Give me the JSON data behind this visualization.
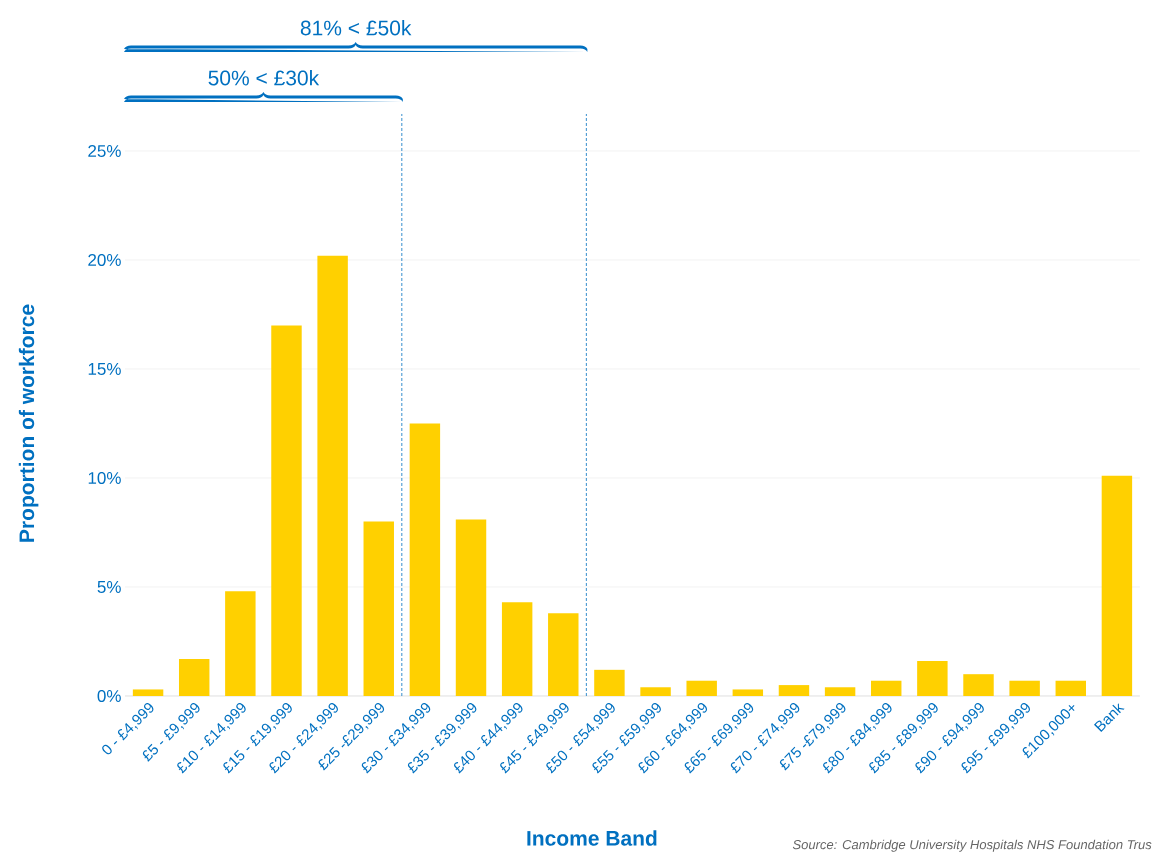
{
  "chart_data": {
    "type": "bar",
    "xlabel": "Income Band",
    "ylabel": "Proportion of workforce",
    "categories": [
      "0 - £4,999",
      "£5 - £9,999",
      "£10 - £14,999",
      "£15 - £19,999",
      "£20 - £24,999",
      "£25 -£29,999",
      "£30 - £34,999",
      "£35 - £39,999",
      "£40 - £44,999",
      "£45 - £49,999",
      "£50 - £54,999",
      "£55 - £59,999",
      "£60 - £64,999",
      "£65 - £69,999",
      "£70 - £74,999",
      "£75 -£79,999",
      "£80 - £84,999",
      "£85 - £89,999",
      "£90 - £94,999",
      "£95 - £99,999",
      "£100,000+",
      "Bank"
    ],
    "values": [
      0.3,
      1.7,
      4.8,
      17.0,
      20.2,
      8.0,
      12.5,
      8.1,
      4.3,
      3.8,
      1.2,
      0.4,
      0.7,
      0.3,
      0.5,
      0.4,
      0.7,
      1.6,
      1.0,
      0.7,
      0.7,
      10.1
    ],
    "color": "#ffd000",
    "ylim": [
      0,
      25
    ],
    "yticks": [
      {
        "value": 0,
        "label": "0%"
      },
      {
        "value": 5,
        "label": "5%"
      },
      {
        "value": 10,
        "label": "10%"
      },
      {
        "value": 15,
        "label": "15%"
      },
      {
        "value": 20,
        "label": "20%"
      },
      {
        "value": 25,
        "label": "25%"
      }
    ],
    "grid": "y",
    "annotations": [
      "50% < £30k",
      "81% < £50k",
      "Source: Cambridge University Hospitals NHS Foundation Trus"
    ]
  }
}
